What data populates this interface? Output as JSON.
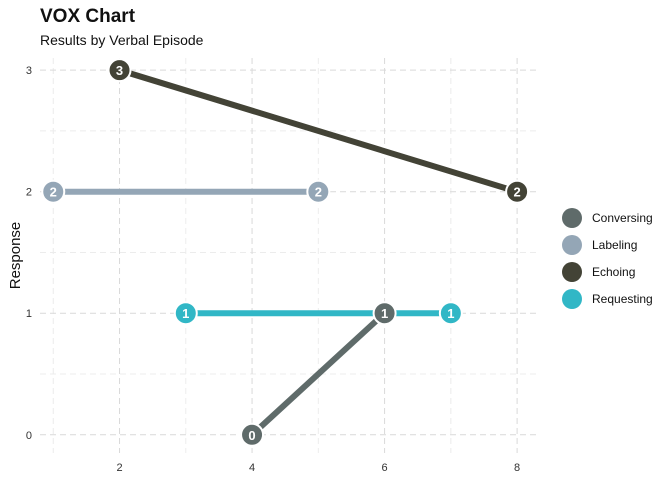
{
  "chart_data": {
    "type": "line",
    "title": "VOX Chart",
    "subtitle": "Results by Verbal Episode",
    "xlabel": "",
    "ylabel": "Response",
    "xlim": [
      0.8,
      8.3
    ],
    "ylim": [
      -0.15,
      3.1
    ],
    "x_ticks": [
      2,
      4,
      6,
      8
    ],
    "y_ticks": [
      0,
      1,
      2,
      3
    ],
    "grid": true,
    "legend_position": "right",
    "series": [
      {
        "name": "Conversing",
        "color": "#5f6b6a",
        "points": [
          {
            "x": 4,
            "y": 0
          },
          {
            "x": 6,
            "y": 1
          }
        ]
      },
      {
        "name": "Labeling",
        "color": "#94a6b6",
        "points": [
          {
            "x": 1,
            "y": 2
          },
          {
            "x": 5,
            "y": 2
          }
        ]
      },
      {
        "name": "Echoing",
        "color": "#434336",
        "points": [
          {
            "x": 2,
            "y": 3
          },
          {
            "x": 8,
            "y": 2
          }
        ]
      },
      {
        "name": "Requesting",
        "color": "#31b7c6",
        "points": [
          {
            "x": 3,
            "y": 1
          },
          {
            "x": 7,
            "y": 1
          }
        ]
      }
    ],
    "series_draw_order": [
      "Requesting",
      "Labeling",
      "Echoing",
      "Conversing"
    ]
  }
}
